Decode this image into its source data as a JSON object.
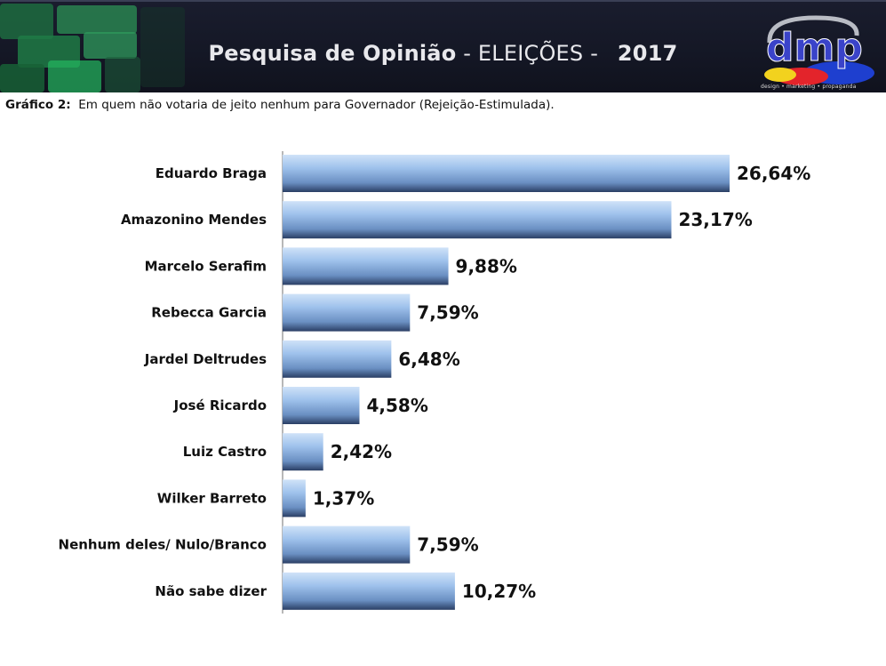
{
  "header": {
    "title_bold": "Pesquisa de Opinião",
    "title_sep": " - ",
    "title_light": "ELEIÇÕES",
    "title_sep2": " - ",
    "year": "2017",
    "logo_text": "dmp",
    "logo_tagline": "design • marketing • propaganda"
  },
  "subtitle": {
    "prefix": "Gráfico 2:",
    "text": "Em quem não votaria de jeito nenhum para Governador (Rejeição-Estimulada)."
  },
  "chart_data": {
    "type": "bar",
    "orientation": "horizontal",
    "title": "",
    "xlabel": "",
    "ylabel": "",
    "xlim": [
      0,
      28
    ],
    "grid": false,
    "categories": [
      "Eduardo Braga",
      "Amazonino Mendes",
      "Marcelo Serafim",
      "Rebecca Garcia",
      "Jardel Deltrudes",
      "José Ricardo",
      "Luiz Castro",
      "Wilker Barreto",
      "Nenhum deles/ Nulo/Branco",
      "Não sabe dizer"
    ],
    "values": [
      26.64,
      23.17,
      9.88,
      7.59,
      6.48,
      4.58,
      2.42,
      1.37,
      7.59,
      10.27
    ],
    "value_labels": [
      "26,64%",
      "23,17%",
      "9,88%",
      "7,59%",
      "6,48%",
      "4,58%",
      "2,42%",
      "1,37%",
      "7,59%",
      "10,27%"
    ],
    "bar_color": "#8eb6e4"
  }
}
